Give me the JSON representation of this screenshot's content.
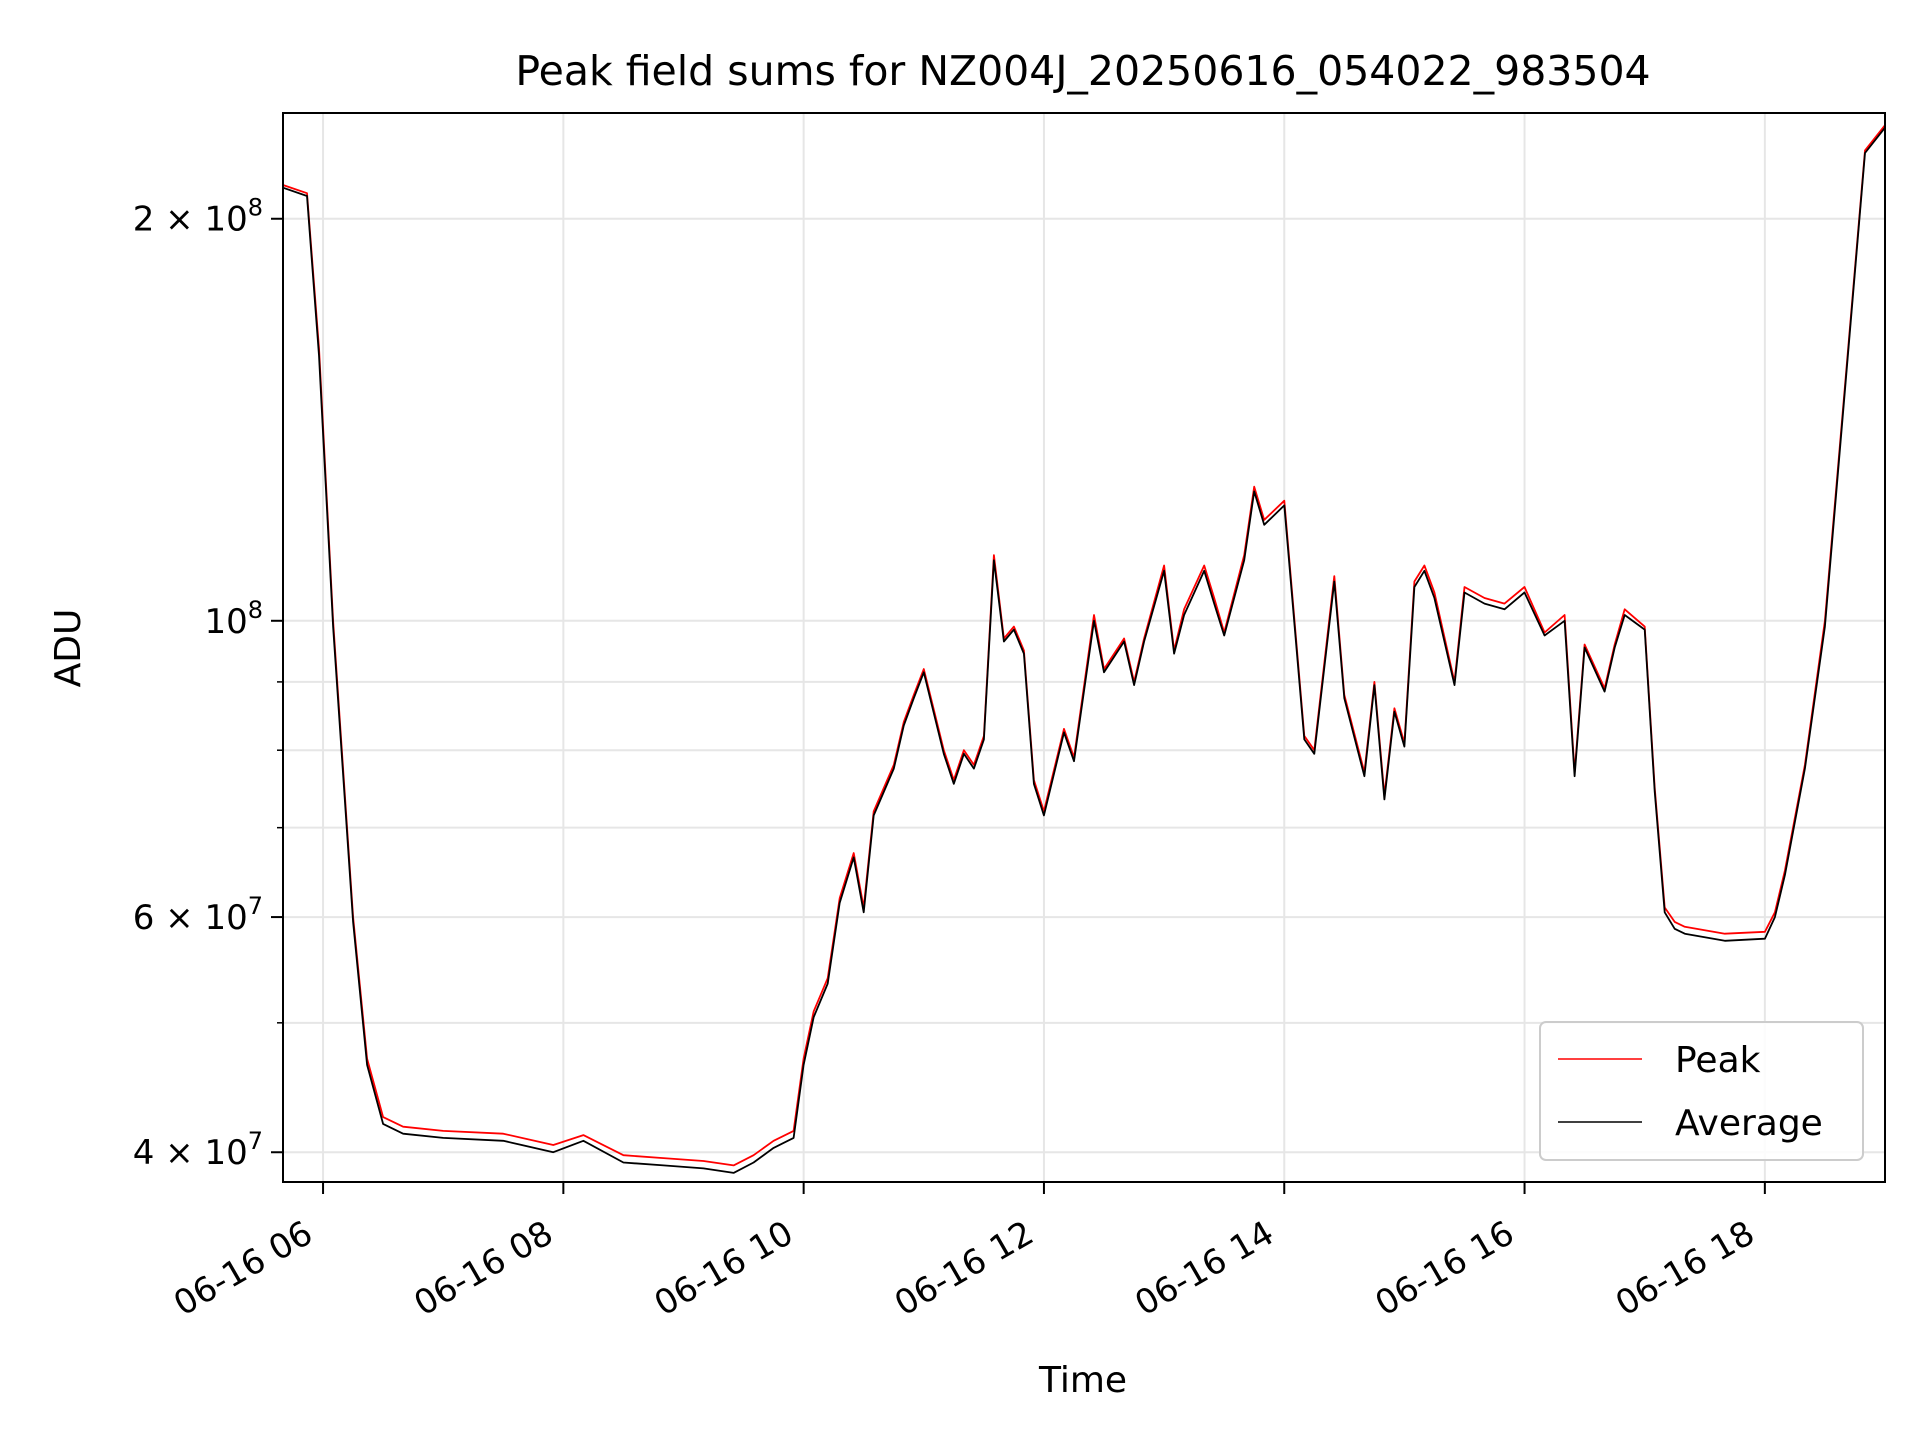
{
  "chart_data": {
    "type": "line",
    "title": "Peak field sums for NZ004J_20250616_054022_983504",
    "xlabel": "Time",
    "ylabel": "ADU",
    "yscale": "log",
    "grid": true,
    "legend_position": "bottom-right",
    "xlim": [
      "2025-06-16 05:40",
      "2025-06-16 19:00"
    ],
    "ylim": [
      38000000,
      240000000
    ],
    "x_ticks": [
      {
        "value": "2025-06-16 06:00",
        "label": "06-16 06"
      },
      {
        "value": "2025-06-16 08:00",
        "label": "06-16 08"
      },
      {
        "value": "2025-06-16 10:00",
        "label": "06-16 10"
      },
      {
        "value": "2025-06-16 12:00",
        "label": "06-16 12"
      },
      {
        "value": "2025-06-16 14:00",
        "label": "06-16 14"
      },
      {
        "value": "2025-06-16 16:00",
        "label": "06-16 16"
      },
      {
        "value": "2025-06-16 18:00",
        "label": "06-16 18"
      }
    ],
    "y_ticks": [
      {
        "value": 40000000,
        "mant": "4",
        "exp": "7"
      },
      {
        "value": 60000000,
        "mant": "6",
        "exp": "7"
      },
      {
        "value": 100000000,
        "mant": "",
        "exp": "8"
      },
      {
        "value": 200000000,
        "mant": "2",
        "exp": "8"
      }
    ],
    "y_minor_ticks": [
      50000000,
      70000000,
      80000000,
      90000000
    ],
    "series": [
      {
        "name": "Peak",
        "color": "#ff0000",
        "x": [
          "2025-06-16 05:40",
          "2025-06-16 05:52",
          "2025-06-16 05:58",
          "2025-06-16 06:05",
          "2025-06-16 06:15",
          "2025-06-16 06:22",
          "2025-06-16 06:30",
          "2025-06-16 06:40",
          "2025-06-16 07:00",
          "2025-06-16 07:30",
          "2025-06-16 07:55",
          "2025-06-16 08:10",
          "2025-06-16 08:30",
          "2025-06-16 08:50",
          "2025-06-16 09:10",
          "2025-06-16 09:25",
          "2025-06-16 09:35",
          "2025-06-16 09:45",
          "2025-06-16 09:55",
          "2025-06-16 10:00",
          "2025-06-16 10:05",
          "2025-06-16 10:12",
          "2025-06-16 10:18",
          "2025-06-16 10:25",
          "2025-06-16 10:30",
          "2025-06-16 10:35",
          "2025-06-16 10:45",
          "2025-06-16 10:50",
          "2025-06-16 10:55",
          "2025-06-16 11:00",
          "2025-06-16 11:10",
          "2025-06-16 11:15",
          "2025-06-16 11:20",
          "2025-06-16 11:25",
          "2025-06-16 11:30",
          "2025-06-16 11:35",
          "2025-06-16 11:40",
          "2025-06-16 11:45",
          "2025-06-16 11:50",
          "2025-06-16 11:55",
          "2025-06-16 12:00",
          "2025-06-16 12:10",
          "2025-06-16 12:15",
          "2025-06-16 12:25",
          "2025-06-16 12:30",
          "2025-06-16 12:40",
          "2025-06-16 12:45",
          "2025-06-16 12:50",
          "2025-06-16 13:00",
          "2025-06-16 13:05",
          "2025-06-16 13:10",
          "2025-06-16 13:20",
          "2025-06-16 13:25",
          "2025-06-16 13:30",
          "2025-06-16 13:40",
          "2025-06-16 13:45",
          "2025-06-16 13:50",
          "2025-06-16 14:00",
          "2025-06-16 14:10",
          "2025-06-16 14:15",
          "2025-06-16 14:25",
          "2025-06-16 14:30",
          "2025-06-16 14:40",
          "2025-06-16 14:45",
          "2025-06-16 14:50",
          "2025-06-16 14:55",
          "2025-06-16 15:00",
          "2025-06-16 15:05",
          "2025-06-16 15:10",
          "2025-06-16 15:15",
          "2025-06-16 15:25",
          "2025-06-16 15:30",
          "2025-06-16 15:40",
          "2025-06-16 15:50",
          "2025-06-16 16:00",
          "2025-06-16 16:10",
          "2025-06-16 16:20",
          "2025-06-16 16:25",
          "2025-06-16 16:30",
          "2025-06-16 16:40",
          "2025-06-16 16:45",
          "2025-06-16 16:50",
          "2025-06-16 17:00",
          "2025-06-16 17:05",
          "2025-06-16 17:10",
          "2025-06-16 17:15",
          "2025-06-16 17:20",
          "2025-06-16 17:40",
          "2025-06-16 18:00",
          "2025-06-16 18:05",
          "2025-06-16 18:10",
          "2025-06-16 18:20",
          "2025-06-16 18:30",
          "2025-06-16 18:40",
          "2025-06-16 18:50",
          "2025-06-16 19:00"
        ],
        "y": [
          212000000,
          209000000,
          160000000,
          100000000,
          60000000,
          47000000,
          42500000,
          41800000,
          41500000,
          41300000,
          40500000,
          41200000,
          39800000,
          39600000,
          39400000,
          39100000,
          39800000,
          40800000,
          41500000,
          47000000,
          51000000,
          54000000,
          62000000,
          67000000,
          61000000,
          72000000,
          78000000,
          84000000,
          88000000,
          92000000,
          80000000,
          76000000,
          80000000,
          78000000,
          82000000,
          112000000,
          97000000,
          99000000,
          95000000,
          76000000,
          72000000,
          83000000,
          79000000,
          101000000,
          92000000,
          97000000,
          90000000,
          97000000,
          110000000,
          95000000,
          102000000,
          110000000,
          104000000,
          98000000,
          112000000,
          126000000,
          119000000,
          123000000,
          82000000,
          80000000,
          108000000,
          88000000,
          77000000,
          90000000,
          74000000,
          86000000,
          81000000,
          107000000,
          110000000,
          105000000,
          90000000,
          106000000,
          104000000,
          103000000,
          106000000,
          98000000,
          101000000,
          77000000,
          96000000,
          89000000,
          96000000,
          102000000,
          99000000,
          75000000,
          61000000,
          59500000,
          59000000,
          58300000,
          58500000,
          60500000,
          65000000,
          78000000,
          100000000,
          150000000,
          225000000,
          235000000
        ]
      },
      {
        "name": "Average",
        "color": "#000000",
        "x": [
          "2025-06-16 05:40",
          "2025-06-16 05:52",
          "2025-06-16 05:58",
          "2025-06-16 06:05",
          "2025-06-16 06:15",
          "2025-06-16 06:22",
          "2025-06-16 06:30",
          "2025-06-16 06:40",
          "2025-06-16 07:00",
          "2025-06-16 07:30",
          "2025-06-16 07:55",
          "2025-06-16 08:10",
          "2025-06-16 08:30",
          "2025-06-16 08:50",
          "2025-06-16 09:10",
          "2025-06-16 09:25",
          "2025-06-16 09:35",
          "2025-06-16 09:45",
          "2025-06-16 09:55",
          "2025-06-16 10:00",
          "2025-06-16 10:05",
          "2025-06-16 10:12",
          "2025-06-16 10:18",
          "2025-06-16 10:25",
          "2025-06-16 10:30",
          "2025-06-16 10:35",
          "2025-06-16 10:45",
          "2025-06-16 10:50",
          "2025-06-16 10:55",
          "2025-06-16 11:00",
          "2025-06-16 11:10",
          "2025-06-16 11:15",
          "2025-06-16 11:20",
          "2025-06-16 11:25",
          "2025-06-16 11:30",
          "2025-06-16 11:35",
          "2025-06-16 11:40",
          "2025-06-16 11:45",
          "2025-06-16 11:50",
          "2025-06-16 11:55",
          "2025-06-16 12:00",
          "2025-06-16 12:10",
          "2025-06-16 12:15",
          "2025-06-16 12:25",
          "2025-06-16 12:30",
          "2025-06-16 12:40",
          "2025-06-16 12:45",
          "2025-06-16 12:50",
          "2025-06-16 13:00",
          "2025-06-16 13:05",
          "2025-06-16 13:10",
          "2025-06-16 13:20",
          "2025-06-16 13:25",
          "2025-06-16 13:30",
          "2025-06-16 13:40",
          "2025-06-16 13:45",
          "2025-06-16 13:50",
          "2025-06-16 14:00",
          "2025-06-16 14:10",
          "2025-06-16 14:15",
          "2025-06-16 14:25",
          "2025-06-16 14:30",
          "2025-06-16 14:40",
          "2025-06-16 14:45",
          "2025-06-16 14:50",
          "2025-06-16 14:55",
          "2025-06-16 15:00",
          "2025-06-16 15:05",
          "2025-06-16 15:10",
          "2025-06-16 15:15",
          "2025-06-16 15:25",
          "2025-06-16 15:30",
          "2025-06-16 15:40",
          "2025-06-16 15:50",
          "2025-06-16 16:00",
          "2025-06-16 16:10",
          "2025-06-16 16:20",
          "2025-06-16 16:25",
          "2025-06-16 16:30",
          "2025-06-16 16:40",
          "2025-06-16 16:45",
          "2025-06-16 16:50",
          "2025-06-16 17:00",
          "2025-06-16 17:05",
          "2025-06-16 17:10",
          "2025-06-16 17:15",
          "2025-06-16 17:20",
          "2025-06-16 17:40",
          "2025-06-16 18:00",
          "2025-06-16 18:05",
          "2025-06-16 18:10",
          "2025-06-16 18:20",
          "2025-06-16 18:30",
          "2025-06-16 18:40",
          "2025-06-16 18:50",
          "2025-06-16 19:00"
        ],
        "y": [
          211000000,
          208000000,
          158000000,
          99000000,
          59500000,
          46500000,
          42000000,
          41300000,
          41000000,
          40800000,
          40000000,
          40800000,
          39300000,
          39100000,
          38900000,
          38600000,
          39300000,
          40300000,
          41000000,
          46500000,
          50500000,
          53500000,
          61500000,
          66500000,
          60500000,
          71500000,
          77500000,
          83500000,
          87500000,
          91500000,
          79500000,
          75500000,
          79500000,
          77500000,
          81500000,
          111000000,
          96500000,
          98500000,
          94500000,
          75500000,
          71500000,
          82500000,
          78500000,
          100000000,
          91500000,
          96500000,
          89500000,
          96500000,
          109000000,
          94500000,
          101000000,
          109000000,
          103000000,
          97500000,
          111000000,
          125000000,
          118000000,
          122000000,
          81500000,
          79500000,
          107000000,
          87500000,
          76500000,
          89500000,
          73500000,
          85500000,
          80500000,
          106000000,
          109000000,
          104000000,
          89500000,
          105000000,
          103000000,
          102000000,
          105000000,
          97500000,
          100000000,
          76500000,
          95500000,
          88500000,
          95500000,
          101000000,
          98500000,
          74500000,
          60500000,
          58800000,
          58300000,
          57600000,
          57800000,
          60000000,
          64500000,
          77500000,
          99000000,
          149000000,
          224000000,
          234000000
        ]
      }
    ]
  }
}
